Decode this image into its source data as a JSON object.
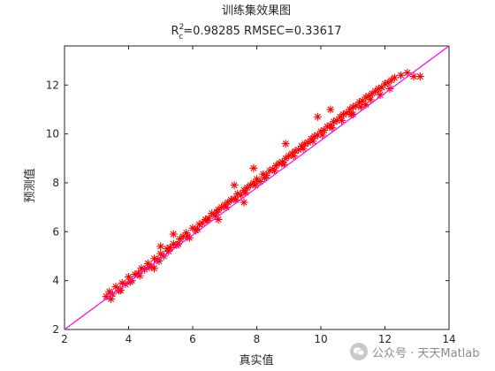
{
  "chart_data": {
    "type": "scatter",
    "title": "训练集效果图",
    "subtitle": {
      "r_label": "R",
      "sup": "2",
      "sub": "c",
      "r2_text": "=0.98285",
      "rmse_text": "RMSEC=0.33617"
    },
    "xlabel": "真实值",
    "ylabel": "预测值",
    "xlim": [
      2,
      14
    ],
    "ylim": [
      2,
      13.6
    ],
    "xticks": [
      "2",
      "4",
      "6",
      "8",
      "10",
      "12",
      "14"
    ],
    "yticks": [
      "2",
      "4",
      "6",
      "8",
      "10",
      "12"
    ],
    "grid": false,
    "marker": "*",
    "colors": {
      "points": "#ff0000",
      "fit_line": "#ff00ff",
      "axes": "#262626"
    },
    "reference_line": {
      "from": [
        2,
        2
      ],
      "to": [
        14,
        13.6
      ]
    },
    "x": [
      3.3,
      3.4,
      3.5,
      3.6,
      3.7,
      3.8,
      3.9,
      4.0,
      4.1,
      4.2,
      4.3,
      4.4,
      4.5,
      4.6,
      4.7,
      4.8,
      4.9,
      5.0,
      5.1,
      5.2,
      5.3,
      5.4,
      5.5,
      5.6,
      5.7,
      5.8,
      5.9,
      6.0,
      6.1,
      6.2,
      6.3,
      6.4,
      6.5,
      6.6,
      6.7,
      6.8,
      6.9,
      7.0,
      7.1,
      7.2,
      7.3,
      7.4,
      7.5,
      7.6,
      7.7,
      7.8,
      7.9,
      8.0,
      8.1,
      8.2,
      8.3,
      8.4,
      8.5,
      8.6,
      8.7,
      8.8,
      8.9,
      9.0,
      9.1,
      9.2,
      9.3,
      9.4,
      9.5,
      9.6,
      9.7,
      9.8,
      9.9,
      10.0,
      10.1,
      10.2,
      10.3,
      10.4,
      10.5,
      10.6,
      10.7,
      10.8,
      10.9,
      11.0,
      11.1,
      11.2,
      11.3,
      11.4,
      11.5,
      11.6,
      11.7,
      11.8,
      11.9,
      12.0,
      12.1,
      12.2,
      12.3,
      12.5,
      12.7,
      12.9,
      13.1,
      3.45,
      3.75,
      4.05,
      4.35,
      4.65,
      4.95,
      5.25,
      5.55,
      5.85,
      6.15,
      6.45,
      6.75,
      7.05,
      7.35,
      7.65,
      7.95,
      8.25,
      8.55,
      8.85,
      9.15,
      9.45,
      9.75,
      10.05,
      10.35,
      10.65,
      10.95,
      11.25,
      11.55,
      11.85,
      12.15,
      5.0,
      5.4,
      7.3,
      7.9,
      8.9,
      9.9,
      10.3,
      11.0,
      11.4,
      4.8,
      6.8,
      7.6
    ],
    "y": [
      3.35,
      3.55,
      3.45,
      3.75,
      3.6,
      3.9,
      3.85,
      4.15,
      4.0,
      4.25,
      4.3,
      4.5,
      4.45,
      4.7,
      4.6,
      4.9,
      4.85,
      5.1,
      5.0,
      5.3,
      5.35,
      5.5,
      5.45,
      5.7,
      5.8,
      5.95,
      5.75,
      6.15,
      6.05,
      6.3,
      6.35,
      6.5,
      6.55,
      6.75,
      6.65,
      6.9,
      7.0,
      7.1,
      7.2,
      7.3,
      7.35,
      7.55,
      7.5,
      7.7,
      7.8,
      7.9,
      8.0,
      8.15,
      8.05,
      8.35,
      8.3,
      8.5,
      8.55,
      8.7,
      8.8,
      8.85,
      9.0,
      9.1,
      9.2,
      9.3,
      9.35,
      9.5,
      9.6,
      9.65,
      9.8,
      9.9,
      9.95,
      10.1,
      10.15,
      10.3,
      10.35,
      10.5,
      10.55,
      10.7,
      10.8,
      10.85,
      11.0,
      11.1,
      11.15,
      11.3,
      11.35,
      11.5,
      11.55,
      11.65,
      11.75,
      11.85,
      11.9,
      12.05,
      12.1,
      12.2,
      12.3,
      12.4,
      12.5,
      12.35,
      12.35,
      3.25,
      3.6,
      3.95,
      4.2,
      4.55,
      4.8,
      5.2,
      5.5,
      5.8,
      6.1,
      6.45,
      6.8,
      7.0,
      7.3,
      7.6,
      7.9,
      8.2,
      8.5,
      8.75,
      9.1,
      9.4,
      9.7,
      9.95,
      10.25,
      10.55,
      10.8,
      11.1,
      11.4,
      11.6,
      11.85,
      5.4,
      5.9,
      7.9,
      8.6,
      9.6,
      10.7,
      11.0,
      10.8,
      11.2,
      4.5,
      6.5,
      7.2
    ]
  },
  "watermark": {
    "text": "公众号 · 天天Matlab"
  }
}
